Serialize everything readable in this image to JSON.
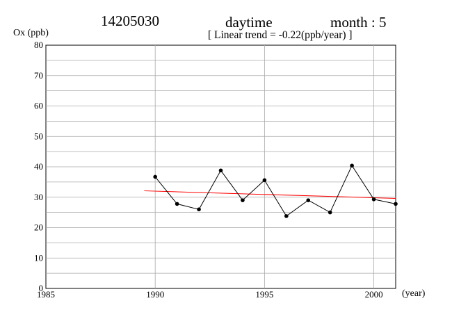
{
  "header": {
    "station": "14205030",
    "period": "daytime",
    "month_label": "month : 5",
    "trend_text": "[ Linear trend = -0.22(ppb/year) ]"
  },
  "chart_data": {
    "type": "line",
    "title": "14205030",
    "ylabel": "Ox (ppb)",
    "xlabel": "(year)",
    "xlim": [
      1985,
      2001
    ],
    "ylim": [
      0,
      80
    ],
    "x_ticks": [
      1985,
      1990,
      1995,
      2000
    ],
    "y_ticks": [
      0,
      10,
      20,
      30,
      40,
      50,
      60,
      70,
      80
    ],
    "grid": true,
    "series": [
      {
        "color": "#000000",
        "points": [
          {
            "x": 1990,
            "y": 36.7
          },
          {
            "x": 1991,
            "y": 27.8
          },
          {
            "x": 1992,
            "y": 26.0
          },
          {
            "x": 1993,
            "y": 38.8
          },
          {
            "x": 1994,
            "y": 29.0
          },
          {
            "x": 1995,
            "y": 35.6
          },
          {
            "x": 1996,
            "y": 23.8
          },
          {
            "x": 1997,
            "y": 29.0
          },
          {
            "x": 1998,
            "y": 25.0
          },
          {
            "x": 1999,
            "y": 40.4
          },
          {
            "x": 2000,
            "y": 29.3
          },
          {
            "x": 2001,
            "y": 27.8
          }
        ]
      }
    ],
    "trend_line": {
      "color": "#ff0000",
      "slope": -0.22,
      "points": [
        {
          "x": 1989.5,
          "y": 32.1
        },
        {
          "x": 2001,
          "y": 29.6
        }
      ]
    }
  }
}
